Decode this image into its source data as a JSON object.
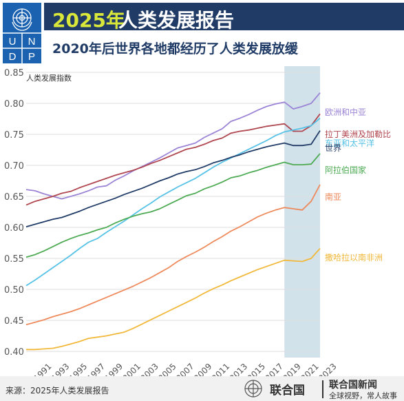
{
  "header": {
    "logo_text": "U N D P",
    "title_year": "2025年",
    "title_rest": "人类发展报告",
    "subtitle": "2020年后世界各地都经历了人类发展放缓"
  },
  "footer": {
    "source": "来源：2025年人类发展报告",
    "brand1": "联合国",
    "brand2": "联合国新闻",
    "brand3": "全球视野，常人故事"
  },
  "colors": {
    "header_band": "#1f3b66",
    "title_year": "#d9e63a",
    "highlight": "#c9dde8",
    "logo": "#1b62b0"
  },
  "chart_data": {
    "type": "line",
    "ylabel": "人类发展指数",
    "ylim": [
      0.39,
      0.86
    ],
    "xlim": [
      1990,
      2023
    ],
    "yticks": [
      0.4,
      0.45,
      0.5,
      0.55,
      0.6,
      0.65,
      0.7,
      0.75,
      0.8,
      0.85
    ],
    "ytick_labels": [
      "0.40",
      "0.45",
      "0.50",
      "0.55",
      "0.60",
      "0.65",
      "0.70",
      "0.75",
      "0.80",
      "0.85"
    ],
    "xtick_labels": [
      "1991",
      "1993",
      "1995",
      "1997",
      "1999",
      "2001",
      "2003",
      "2005",
      "2007",
      "2009",
      "2011",
      "2013",
      "2015",
      "2017",
      "2019",
      "2021",
      "2023"
    ],
    "xtick_values": [
      1991,
      1993,
      1995,
      1997,
      1999,
      2001,
      2003,
      2005,
      2007,
      2009,
      2011,
      2013,
      2015,
      2017,
      2019,
      2021,
      2023
    ],
    "highlight_range": [
      2019,
      2023
    ],
    "x": [
      1990,
      1991,
      1992,
      1993,
      1994,
      1995,
      1996,
      1997,
      1998,
      1999,
      2000,
      2001,
      2002,
      2003,
      2004,
      2005,
      2006,
      2007,
      2008,
      2009,
      2010,
      2011,
      2012,
      2013,
      2014,
      2015,
      2016,
      2017,
      2018,
      2019,
      2020,
      2021,
      2022,
      2023
    ],
    "series": [
      {
        "name": "欧洲和中亚",
        "color": "#9b84d6",
        "values": [
          0.661,
          0.659,
          0.654,
          0.65,
          0.646,
          0.65,
          0.654,
          0.659,
          0.665,
          0.667,
          0.676,
          0.683,
          0.691,
          0.698,
          0.705,
          0.712,
          0.72,
          0.728,
          0.732,
          0.736,
          0.745,
          0.752,
          0.759,
          0.771,
          0.776,
          0.782,
          0.789,
          0.795,
          0.799,
          0.802,
          0.791,
          0.795,
          0.8,
          0.817
        ]
      },
      {
        "name": "拉丁美洲及加勒比",
        "color": "#b0464f",
        "values": [
          0.636,
          0.642,
          0.646,
          0.65,
          0.655,
          0.658,
          0.664,
          0.669,
          0.674,
          0.679,
          0.684,
          0.688,
          0.692,
          0.697,
          0.703,
          0.708,
          0.714,
          0.72,
          0.726,
          0.729,
          0.734,
          0.74,
          0.744,
          0.752,
          0.755,
          0.757,
          0.76,
          0.763,
          0.765,
          0.767,
          0.755,
          0.755,
          0.764,
          0.783
        ]
      },
      {
        "name": "东亚和太平洋",
        "color": "#56c2e6",
        "values": [
          0.506,
          0.515,
          0.525,
          0.535,
          0.545,
          0.555,
          0.566,
          0.576,
          0.582,
          0.592,
          0.601,
          0.61,
          0.62,
          0.63,
          0.639,
          0.649,
          0.657,
          0.665,
          0.672,
          0.679,
          0.688,
          0.697,
          0.705,
          0.712,
          0.719,
          0.726,
          0.733,
          0.74,
          0.748,
          0.754,
          0.757,
          0.76,
          0.764,
          0.776
        ]
      },
      {
        "name": "世界",
        "color": "#1f3b66",
        "values": [
          0.601,
          0.605,
          0.609,
          0.613,
          0.616,
          0.621,
          0.626,
          0.632,
          0.637,
          0.642,
          0.647,
          0.653,
          0.658,
          0.663,
          0.669,
          0.675,
          0.68,
          0.686,
          0.69,
          0.693,
          0.698,
          0.704,
          0.708,
          0.713,
          0.717,
          0.722,
          0.726,
          0.73,
          0.733,
          0.736,
          0.732,
          0.732,
          0.734,
          0.756
        ]
      },
      {
        "name": "阿拉伯国家",
        "color": "#4caa52",
        "values": [
          0.552,
          0.556,
          0.562,
          0.569,
          0.576,
          0.582,
          0.587,
          0.591,
          0.596,
          0.6,
          0.607,
          0.613,
          0.618,
          0.622,
          0.625,
          0.63,
          0.637,
          0.644,
          0.651,
          0.655,
          0.662,
          0.667,
          0.673,
          0.68,
          0.683,
          0.688,
          0.692,
          0.697,
          0.701,
          0.705,
          0.701,
          0.701,
          0.702,
          0.719
        ]
      },
      {
        "name": "南亚",
        "color": "#ee8a5c",
        "values": [
          0.443,
          0.447,
          0.451,
          0.456,
          0.46,
          0.464,
          0.469,
          0.475,
          0.481,
          0.487,
          0.493,
          0.499,
          0.505,
          0.512,
          0.519,
          0.527,
          0.535,
          0.545,
          0.553,
          0.56,
          0.568,
          0.577,
          0.585,
          0.594,
          0.601,
          0.609,
          0.617,
          0.623,
          0.628,
          0.632,
          0.63,
          0.628,
          0.642,
          0.669
        ]
      },
      {
        "name": "撒哈拉以南非洲",
        "color": "#f1b83a",
        "values": [
          0.403,
          0.403,
          0.404,
          0.405,
          0.408,
          0.412,
          0.416,
          0.421,
          0.423,
          0.425,
          0.428,
          0.431,
          0.437,
          0.444,
          0.451,
          0.458,
          0.465,
          0.472,
          0.479,
          0.486,
          0.494,
          0.501,
          0.507,
          0.514,
          0.52,
          0.526,
          0.532,
          0.537,
          0.542,
          0.547,
          0.546,
          0.545,
          0.55,
          0.566
        ]
      }
    ]
  }
}
